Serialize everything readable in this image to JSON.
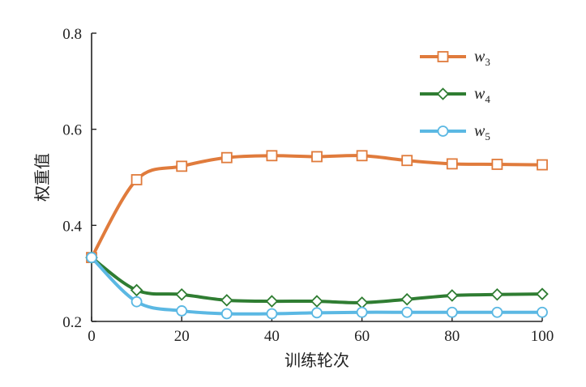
{
  "chart_data": {
    "type": "line",
    "xlabel": "训练轮次",
    "ylabel": "权重值",
    "xlim": [
      0,
      100
    ],
    "ylim": [
      0.2,
      0.8
    ],
    "x_ticks": [
      0,
      20,
      40,
      60,
      80,
      100
    ],
    "y_ticks": [
      0.2,
      0.4,
      0.6,
      0.8
    ],
    "x_tick_labels": [
      "0",
      "20",
      "40",
      "60",
      "80",
      "100"
    ],
    "y_tick_labels": [
      "0.2",
      "0.4",
      "0.6",
      "0.8"
    ],
    "grid": false,
    "legend": "top-right",
    "x": [
      0,
      10,
      20,
      30,
      40,
      50,
      60,
      70,
      80,
      90,
      100
    ],
    "series": [
      {
        "name": "w3",
        "symbol": "w",
        "subscript": "3",
        "marker": "square",
        "color": "#e07b3c",
        "values": [
          0.333,
          0.495,
          0.523,
          0.541,
          0.545,
          0.543,
          0.545,
          0.535,
          0.528,
          0.527,
          0.526
        ]
      },
      {
        "name": "w4",
        "symbol": "w",
        "subscript": "4",
        "marker": "diamond",
        "color": "#2f7d32",
        "values": [
          0.333,
          0.265,
          0.256,
          0.244,
          0.242,
          0.242,
          0.239,
          0.246,
          0.254,
          0.256,
          0.257
        ]
      },
      {
        "name": "w5",
        "symbol": "w",
        "subscript": "5",
        "marker": "circle",
        "color": "#5bb8e3",
        "values": [
          0.333,
          0.241,
          0.222,
          0.216,
          0.216,
          0.218,
          0.219,
          0.219,
          0.219,
          0.219,
          0.219
        ]
      }
    ]
  }
}
